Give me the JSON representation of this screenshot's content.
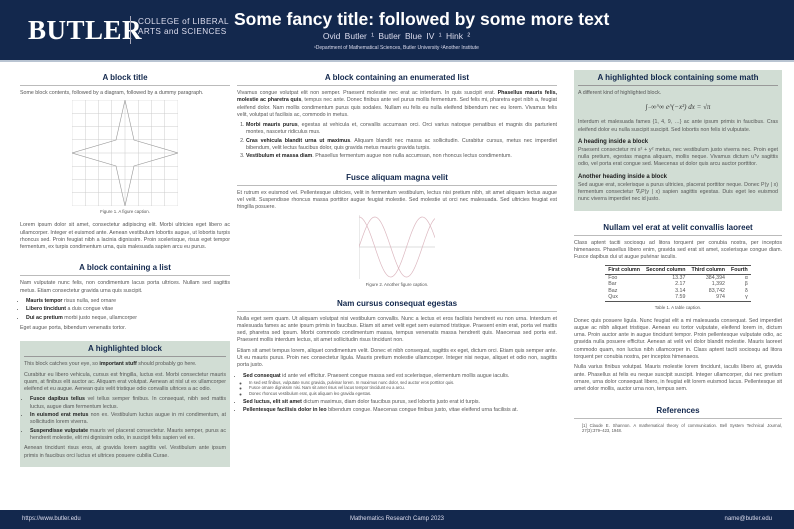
{
  "header": {
    "logo": "BUTLER",
    "college_line1": "COLLEGE of LIBERAL",
    "college_line2": "ARTS and SCIENCES",
    "title": "Some fancy title: followed by some more text",
    "authors": "Ovid Butler ¹   Butler Blue IV ¹   Hink ²",
    "affiliations": "¹Department of Mathematical Sciences, Butler University        ²Another Institute"
  },
  "col1": {
    "b1": {
      "title": "A block title",
      "intro": "Some block contents, followed by a diagram, followed by a dummy paragraph.",
      "caption": "Figure 1. A figure caption.",
      "para": "Lorem ipsum dolor sit amet, consectetur adipiscing elit. Morbi ultricies eget libero ac ullamcorper. Integer et euismod ante. Aenean vestibulum lobortis augue, ut lobortis turpis rhoncus sed. Proin feugiat nibh a lacinia dignissim. Proin scelerisque, risus eget tempor fermentum, ex turpis condimentum urna, quis malesuada sapien arcu eu purus."
    },
    "b2": {
      "title": "A block containing a list",
      "intro": "Nam vulputate nunc felis, non condimentum lacus porta ultrices. Nullam sed sagittis metus. Etiam consectetur gravida urna quis suscipit.",
      "items": [
        {
          "b": "Mauris tempor",
          "t": " risus nulla, sed ornare"
        },
        {
          "b": "Libero tincidunt",
          "t": " a duis congue vitae"
        },
        {
          "b": "Dui ac pretium",
          "t": " morbi justo neque, ullamcorper"
        }
      ],
      "outro": "Eget augue porta, bibendum venenatis tortor."
    },
    "b3": {
      "title": "A highlighted block",
      "p1a": "This block catches your eye, so ",
      "p1b": "important stuff",
      "p1c": " should probably go here.",
      "p2": "Curabitur eu libero vehicula, cursus est fringilla, luctus est. Morbi consectetur mauris quam, at finibus elit auctor ac. Aliquam erat volutpat. Aenean at nisl ut ex ullamcorper eleifend et eu augue. Aenean quis velit tristique odio convallis ultrices a ac odio.",
      "items": [
        {
          "b": "Fusce dapibus tellus",
          "t": " vel tellus semper finibus. In consequat, nibh sed mattis luctus, augue diam fermentum lectus."
        },
        {
          "b": "In euismod erat metus",
          "t": " non ex. Vestibulum luctus augue in mi condimentum, at sollicitudin lorem viverra."
        },
        {
          "b": "Suspendisse vulputate",
          "t": " mauris vel placerat consectetur. Mauris semper, purus ac hendrerit molestie, elit mi dignissim odio, in suscipit felis sapien vel ex."
        }
      ],
      "p3": "Aenean tincidunt risus eros, at gravida lorem sagittis vel. Vestibulum ante ipsum primis in faucibus orci luctus et ultrices posuere cubilia Curae."
    }
  },
  "col2": {
    "b1": {
      "title": "A block containing an enumerated list",
      "p1a": "Vivamus congue volutpat elit non semper. Praesent molestie nec erat ac interdum. In quis suscipit erat. ",
      "p1b": "Phasellus mauris felis, molestie ac pharetra quis",
      "p1c": ", tempus nec ante. Donec finibus ante vel purus mollis fermentum. Sed felis mi, pharetra eget nibh a, feugiat eleifend dolor. Nam mollis condimentum purus quis sodales. Nullam eu felis eu nulla eleifend bibendum nec eu lorem. Vivamus felis velit, volutpat ut facilisis ac, commodo in metus.",
      "items": [
        {
          "b": "Morbi mauris purus",
          "t": ", egestas at vehicula et, convallis accumsan orci. Orci varius natoque penatibus et magnis dis parturient montes, nascetur ridiculus mus."
        },
        {
          "b": "Cras vehicula blandit urna ut maximus",
          "t": ". Aliquam blandit nec massa ac sollicitudin. Curabitur cursus, metus nec imperdiet bibendum, velit lectus faucibus dolor, quis gravida metus mauris gravida turpis."
        },
        {
          "b": "Vestibulum et massa diam",
          "t": ". Phasellus fermentum augue non nulla accumsan, non rhoncus lectus condimentum."
        }
      ]
    },
    "b2": {
      "title": "Fusce aliquam magna velit",
      "para": "Et rutrum ex euismod vel. Pellentesque ultricies, velit in fermentum vestibulum, lectus nisi pretium nibh, sit amet aliquam lectus augue vel velit. Suspendisse rhoncus massa porttitor augue feugiat molestie. Sed molestie ut orci nec malesuada. Sed ultricies feugiat est fringilla posuere.",
      "caption": "Figure 2. Another figure caption."
    },
    "b3": {
      "title": "Nam cursus consequat egestas",
      "p1": "Nulla eget sem quam. Ut aliquam volutpat nisi vestibulum convallis. Nunc a lectus et eros facilisis hendrerit eu non urna. Interdum et malesuada fames ac ante ipsum primis in faucibus. Etiam sit amet velit eget sem euismod tristique. Praesent enim erat, porta vel mattis sed, pharetra sed ipsum. Morbi commodo condimentum massa, tempus venenatis massa hendrerit quis. Maecenas sed porta est. Praesent mollis interdum lectus, sit amet sollicitudin risus tincidunt non.",
      "p2": "Etiam sit amet tempus lorem, aliquet condimentum velit. Donec et nibh consequat, sagittis ex eget, dictum orci. Etiam quis semper ante. Ut eu mauris purus. Proin nec consectetur ligula. Mauris pretium molestie ullamcorper. Integer nisi neque, aliquet et odio non, sagittis porta justo.",
      "items": [
        {
          "b": "Sed consequat",
          "t": " id ante vel efficitur. Praesent congue massa sed est scelerisque, elementum mollis augue iaculis.",
          "sub": [
            "In sed est finibus, vulputate nunc gravida, pulvinar lorem. In maximus nunc dolor, sed auctor eros porttitor quis.",
            "Fusce ornare dignissim nisi. Nam sit amet risus vel lacus tempor tincidunt eu a arcu.",
            "Donec rhoncus vestibulum erat, quis aliquam leo gravida egestas."
          ]
        },
        {
          "b": "Sed luctus, elit sit amet",
          "t": " dictum maximus, diam dolor faucibus purus, sed lobortis justo erat id turpis."
        },
        {
          "b": "Pellentesque facilisis dolor in leo",
          "t": " bibendum congue. Maecenas congue finibus justo, vitae eleifend urna facilisis at."
        }
      ]
    }
  },
  "col3": {
    "b1": {
      "title": "A highlighted block containing some math",
      "intro": "A different kind of highlighted block.",
      "math": "∫₋∞^∞ e^(−x²) dx = √π",
      "p1": "Interdum et malesuada fames {1, 4, 9, …} ac ante ipsum primis in faucibus. Cras eleifend dolor eu nulla suscipit suscipit. Sed lobortis non felis id vulputate.",
      "h1": "A heading inside a block",
      "p2": "Praesent consectetur mi x² + y² metus, nec vestibulum justo viverra nec. Proin eget nulla pretium, egestas magna aliquam, mollis neque. Vivamus dictum uᵀv sagittis odio, vel porta erat congue sed. Maecenas ut dolor quis arcu auctor porttitor.",
      "h2": "Another heading inside a block",
      "p3": "Sed augue erat, scelerisque a purus ultricies, placerat porttitor neque. Donec P(y | x) fermentum consectetur ∇ₓP(y | x) sapien sagittis egestas. Duis eget leo euismod nunc viverra imperdiet nec id justo."
    },
    "b2": {
      "title": "Nullam vel erat at velit convallis laoreet",
      "intro": "Class aptent taciti sociosqu ad litora torquent per conubia nostra, per inceptos himenaeos. Phasellus libero enim, gravida sed erat sit amet, scelerisque congue diam. Fusce dapibus dui ut augue pulvinar iaculis.",
      "table": {
        "headers": [
          "First column",
          "Second column",
          "Third column",
          "Fourth"
        ],
        "rows": [
          [
            "Foo",
            "13.37",
            "384,394",
            "α"
          ],
          [
            "Bar",
            "2.17",
            "1,392",
            "β"
          ],
          [
            "Baz",
            "3.14",
            "83,742",
            "δ"
          ],
          [
            "Qux",
            "7.59",
            "974",
            "γ"
          ]
        ]
      },
      "caption": "Table 1. A table caption.",
      "p1": "Donec quis posuere ligula. Nunc feugiat elit a mi malesuada consequat. Sed imperdiet augue ac nibh aliquet tristique. Aenean eu tortor vulputate, eleifend lorem in, dictum urna. Proin auctor ante in augue tincidunt tempor. Proin pellentesque vulputate odio, ac gravida nulla posuere efficitur. Aenean at velit vel dolor blandit molestie. Mauris laoreet commodo quam, non luctus nibh ullamcorper in. Class aptent taciti sociosqu ad litora torquent per conubia nostra, per inceptos himenaeos.",
      "p2": "Nulla varius finibus volutpat. Mauris molestie lorem tincidunt, iaculis libero at, gravida ante. Phasellus at felis eu neque suscipit suscipit. Integer ullamcorper, dui nec pretium ornare, urna dolor consequat libero, in feugiat elit lorem euismod lacus. Pellentesque sit amet dolor mollis, auctor urna non, tempus sem."
    },
    "refs": {
      "title": "References",
      "items": [
        "[1]  Claude E. Shannon. A mathematical theory of communication. Bell System Technical Journal, 27(3):379–423, 1948."
      ]
    }
  },
  "footer": {
    "left": "https://www.butler.edu",
    "center": "Mathematics Research Camp 2023",
    "right": "name@butler.edu"
  },
  "colors": {
    "header": "#13284d",
    "highlight": "#d1ddd4"
  }
}
